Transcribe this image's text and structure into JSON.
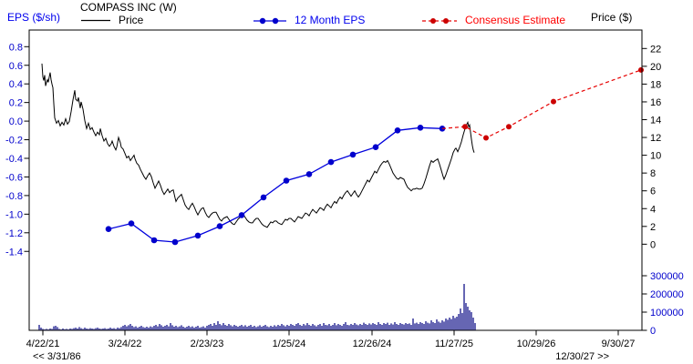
{
  "header": {
    "eps_axis_title": "EPS ($/sh)",
    "company_title": "COMPASS INC (W)",
    "price_axis_title": "Price ($)",
    "legend": {
      "price": "Price",
      "eps": "12 Month EPS",
      "consensus": "Consensus Estimate"
    }
  },
  "nav": {
    "left": "<< 3/31/86",
    "right": "12/30/27 >>"
  },
  "colors": {
    "price_black": "#000000",
    "eps_blue": "#0000dd",
    "consensus_red": "#e60000",
    "legend_red_text": "#ff0000",
    "axis_blue_text": "#0000cc",
    "volume_navy": "#000080"
  },
  "chart_data": {
    "type": "line",
    "title": "COMPASS INC (W)",
    "left_axis": {
      "label": "EPS ($/sh)",
      "ticks": [
        "0.8",
        "0.6",
        "0.4",
        "0.2",
        "0.0",
        "-0.2",
        "-0.4",
        "-0.6",
        "-0.8",
        "-1.0",
        "-1.2",
        "-1.4"
      ],
      "range": [
        0.8,
        -1.4
      ]
    },
    "right_axis": {
      "label": "Price ($)",
      "ticks": [
        "22",
        "20",
        "18",
        "16",
        "14",
        "12",
        "10",
        "8",
        "6",
        "4",
        "2",
        "0"
      ],
      "range": [
        22,
        0
      ]
    },
    "volume_axis": {
      "ticks": [
        "300000",
        "200000",
        "100000",
        "0"
      ],
      "range": [
        300000,
        0
      ]
    },
    "x_axis": {
      "ticks": [
        {
          "label": "4/22/21",
          "x": 47
        },
        {
          "label": "3/24/22",
          "x": 137
        },
        {
          "label": "2/23/23",
          "x": 227
        },
        {
          "label": "1/25/24",
          "x": 317
        },
        {
          "label": "12/26/24",
          "x": 408
        },
        {
          "label": "11/27/25",
          "x": 498
        },
        {
          "label": "10/29/26",
          "x": 588
        },
        {
          "label": "9/30/27",
          "x": 678
        }
      ]
    },
    "series": {
      "price_xy": [
        [
          46,
          20.3
        ],
        [
          47,
          18.8
        ],
        [
          48,
          18.4
        ],
        [
          49,
          19.0
        ],
        [
          50,
          17.8
        ],
        [
          51,
          18.2
        ],
        [
          52,
          18.5
        ],
        [
          53,
          18.2
        ],
        [
          54,
          18.8
        ],
        [
          55,
          19.3
        ],
        [
          56,
          18.5
        ],
        [
          57,
          18.0
        ],
        [
          58,
          17.6
        ],
        [
          59,
          15.8
        ],
        [
          60,
          14.2
        ],
        [
          62,
          13.6
        ],
        [
          64,
          13.9
        ],
        [
          66,
          13.3
        ],
        [
          68,
          13.7
        ],
        [
          70,
          13.4
        ],
        [
          72,
          14.1
        ],
        [
          74,
          13.5
        ],
        [
          76,
          13.8
        ],
        [
          78,
          14.9
        ],
        [
          80,
          16.2
        ],
        [
          82,
          17.3
        ],
        [
          83,
          16.3
        ],
        [
          85,
          16.1
        ],
        [
          86,
          16.5
        ],
        [
          88,
          15.3
        ],
        [
          89,
          16.0
        ],
        [
          91,
          15.2
        ],
        [
          93,
          13.9
        ],
        [
          95,
          13.0
        ],
        [
          97,
          13.6
        ],
        [
          99,
          12.9
        ],
        [
          101,
          13.1
        ],
        [
          103,
          12.6
        ],
        [
          105,
          12.2
        ],
        [
          107,
          12.6
        ],
        [
          109,
          12.3
        ],
        [
          110,
          13.0
        ],
        [
          112,
          12.2
        ],
        [
          114,
          11.6
        ],
        [
          116,
          11.9
        ],
        [
          118,
          11.3
        ],
        [
          120,
          11.0
        ],
        [
          122,
          11.3
        ],
        [
          123,
          11.6
        ],
        [
          125,
          11.0
        ],
        [
          127,
          10.6
        ],
        [
          128,
          10.9
        ],
        [
          130,
          12.0
        ],
        [
          132,
          11.4
        ],
        [
          133,
          10.9
        ],
        [
          135,
          10.7
        ],
        [
          137,
          10.2
        ],
        [
          139,
          9.7
        ],
        [
          141,
          9.9
        ],
        [
          143,
          9.4
        ],
        [
          145,
          9.7
        ],
        [
          147,
          10.0
        ],
        [
          148,
          9.6
        ],
        [
          150,
          9.1
        ],
        [
          152,
          8.9
        ],
        [
          154,
          8.4
        ],
        [
          156,
          8.0
        ],
        [
          158,
          7.6
        ],
        [
          160,
          7.3
        ],
        [
          162,
          7.7
        ],
        [
          164,
          8.0
        ],
        [
          166,
          7.6
        ],
        [
          168,
          6.9
        ],
        [
          170,
          6.3
        ],
        [
          172,
          6.7
        ],
        [
          174,
          7.1
        ],
        [
          176,
          6.6
        ],
        [
          178,
          6.0
        ],
        [
          180,
          5.6
        ],
        [
          182,
          5.9
        ],
        [
          184,
          6.2
        ],
        [
          186,
          5.8
        ],
        [
          188,
          6.0
        ],
        [
          190,
          6.1
        ],
        [
          192,
          5.2
        ],
        [
          193,
          4.8
        ],
        [
          195,
          5.2
        ],
        [
          197,
          5.4
        ],
        [
          199,
          5.6
        ],
        [
          201,
          5.0
        ],
        [
          203,
          4.4
        ],
        [
          205,
          4.1
        ],
        [
          207,
          3.9
        ],
        [
          209,
          4.3
        ],
        [
          211,
          4.6
        ],
        [
          213,
          4.2
        ],
        [
          215,
          3.7
        ],
        [
          217,
          3.3
        ],
        [
          219,
          3.7
        ],
        [
          221,
          4.0
        ],
        [
          223,
          4.1
        ],
        [
          225,
          3.6
        ],
        [
          227,
          3.2
        ],
        [
          229,
          3.0
        ],
        [
          231,
          3.3
        ],
        [
          233,
          3.5
        ],
        [
          235,
          3.6
        ],
        [
          237,
          3.6
        ],
        [
          239,
          3.2
        ],
        [
          241,
          2.8
        ],
        [
          243,
          2.6
        ],
        [
          245,
          2.9
        ],
        [
          247,
          3.0
        ],
        [
          249,
          3.1
        ],
        [
          251,
          2.8
        ],
        [
          253,
          2.5
        ],
        [
          255,
          2.3
        ],
        [
          257,
          2.2
        ],
        [
          259,
          2.5
        ],
        [
          261,
          2.8
        ],
        [
          263,
          3.0
        ],
        [
          265,
          3.2
        ],
        [
          267,
          3.3
        ],
        [
          269,
          3.0
        ],
        [
          271,
          2.7
        ],
        [
          273,
          2.5
        ],
        [
          275,
          2.4
        ],
        [
          277,
          2.4
        ],
        [
          279,
          2.7
        ],
        [
          281,
          2.9
        ],
        [
          283,
          2.9
        ],
        [
          285,
          2.6
        ],
        [
          287,
          2.3
        ],
        [
          289,
          2.1
        ],
        [
          291,
          2.0
        ],
        [
          293,
          1.9
        ],
        [
          295,
          2.2
        ],
        [
          297,
          2.5
        ],
        [
          299,
          2.4
        ],
        [
          301,
          2.6
        ],
        [
          303,
          2.6
        ],
        [
          305,
          2.4
        ],
        [
          307,
          2.3
        ],
        [
          309,
          2.2
        ],
        [
          311,
          2.5
        ],
        [
          313,
          2.8
        ],
        [
          315,
          2.7
        ],
        [
          317,
          2.9
        ],
        [
          319,
          2.9
        ],
        [
          321,
          2.7
        ],
        [
          323,
          2.5
        ],
        [
          325,
          2.8
        ],
        [
          327,
          3.1
        ],
        [
          329,
          3.0
        ],
        [
          331,
          2.9
        ],
        [
          333,
          3.2
        ],
        [
          335,
          3.5
        ],
        [
          337,
          3.4
        ],
        [
          339,
          3.2
        ],
        [
          341,
          3.6
        ],
        [
          343,
          3.9
        ],
        [
          345,
          3.7
        ],
        [
          347,
          3.5
        ],
        [
          349,
          3.8
        ],
        [
          351,
          4.1
        ],
        [
          353,
          4.0
        ],
        [
          355,
          3.8
        ],
        [
          357,
          4.2
        ],
        [
          359,
          4.5
        ],
        [
          361,
          4.3
        ],
        [
          363,
          4.1
        ],
        [
          365,
          4.5
        ],
        [
          367,
          4.8
        ],
        [
          369,
          4.6
        ],
        [
          371,
          5.0
        ],
        [
          373,
          5.3
        ],
        [
          375,
          5.1
        ],
        [
          377,
          5.5
        ],
        [
          379,
          5.8
        ],
        [
          381,
          6.0
        ],
        [
          383,
          5.7
        ],
        [
          385,
          5.4
        ],
        [
          387,
          5.7
        ],
        [
          389,
          6.0
        ],
        [
          391,
          5.6
        ],
        [
          393,
          5.3
        ],
        [
          395,
          5.6
        ],
        [
          397,
          6.0
        ],
        [
          399,
          6.4
        ],
        [
          401,
          6.8
        ],
        [
          403,
          7.2
        ],
        [
          405,
          7.0
        ],
        [
          407,
          7.4
        ],
        [
          409,
          7.8
        ],
        [
          411,
          8.2
        ],
        [
          413,
          8.0
        ],
        [
          415,
          8.4
        ],
        [
          417,
          8.8
        ],
        [
          419,
          9.1
        ],
        [
          421,
          9.3
        ],
        [
          423,
          9.2
        ],
        [
          425,
          9.4
        ],
        [
          427,
          9.0
        ],
        [
          429,
          8.5
        ],
        [
          431,
          8.0
        ],
        [
          433,
          7.7
        ],
        [
          435,
          7.4
        ],
        [
          437,
          7.3
        ],
        [
          439,
          7.5
        ],
        [
          441,
          7.4
        ],
        [
          443,
          7.3
        ],
        [
          445,
          6.8
        ],
        [
          447,
          6.4
        ],
        [
          449,
          6.2
        ],
        [
          451,
          6.0
        ],
        [
          453,
          6.2
        ],
        [
          455,
          6.2
        ],
        [
          457,
          6.3
        ],
        [
          459,
          6.2
        ],
        [
          461,
          6.2
        ],
        [
          463,
          6.3
        ],
        [
          465,
          6.8
        ],
        [
          467,
          7.4
        ],
        [
          469,
          8.1
        ],
        [
          471,
          8.8
        ],
        [
          473,
          9.4
        ],
        [
          475,
          9.2
        ],
        [
          477,
          9.4
        ],
        [
          479,
          9.5
        ],
        [
          480,
          9.6
        ],
        [
          482,
          9.0
        ],
        [
          484,
          8.3
        ],
        [
          486,
          7.6
        ],
        [
          487,
          7.3
        ],
        [
          489,
          7.8
        ],
        [
          491,
          8.4
        ],
        [
          493,
          9.0
        ],
        [
          495,
          9.6
        ],
        [
          497,
          10.3
        ],
        [
          499,
          10.7
        ],
        [
          500,
          10.8
        ],
        [
          502,
          10.4
        ],
        [
          504,
          10.9
        ],
        [
          506,
          11.5
        ],
        [
          508,
          12.3
        ],
        [
          510,
          13.0
        ],
        [
          512,
          13.5
        ],
        [
          513,
          13.7
        ],
        [
          514,
          13.2
        ],
        [
          515,
          13.4
        ],
        [
          516,
          12.6
        ],
        [
          517,
          11.8
        ],
        [
          518,
          11.1
        ],
        [
          519,
          10.6
        ],
        [
          520,
          10.3
        ]
      ],
      "eps_points": [
        [
          119,
          -1.16
        ],
        [
          144,
          -1.1
        ],
        [
          169,
          -1.28
        ],
        [
          192,
          -1.3
        ],
        [
          217,
          -1.23
        ],
        [
          241,
          -1.13
        ],
        [
          265,
          -1.01
        ],
        [
          289,
          -0.82
        ],
        [
          314,
          -0.64
        ],
        [
          339,
          -0.57
        ],
        [
          363,
          -0.44
        ],
        [
          387,
          -0.36
        ],
        [
          412,
          -0.28
        ],
        [
          436,
          -0.1
        ],
        [
          461,
          -0.07
        ],
        [
          485,
          -0.08
        ]
      ],
      "consensus_connect_from": [
        485,
        -0.08
      ],
      "consensus_points": [
        [
          510,
          -0.06
        ],
        [
          533,
          -0.18
        ],
        [
          558,
          -0.06
        ],
        [
          607,
          0.21
        ],
        [
          703,
          0.55
        ]
      ],
      "volume_x0": 43,
      "volume_pitch": 2,
      "volume_k": [
        30,
        15,
        8,
        5,
        8,
        5,
        10,
        8,
        22,
        25,
        18,
        8,
        5,
        10,
        6,
        8,
        5,
        10,
        8,
        12,
        15,
        10,
        18,
        12,
        8,
        15,
        10,
        8,
        12,
        10,
        8,
        12,
        15,
        10,
        8,
        10,
        12,
        8,
        10,
        15,
        10,
        12,
        8,
        15,
        12,
        18,
        25,
        30,
        22,
        28,
        35,
        25,
        18,
        22,
        15,
        20,
        25,
        18,
        15,
        20,
        15,
        22,
        18,
        25,
        30,
        22,
        35,
        28,
        20,
        25,
        30,
        22,
        40,
        28,
        20,
        25,
        18,
        22,
        28,
        20,
        15,
        20,
        25,
        18,
        22,
        15,
        20,
        25,
        15,
        18,
        22,
        15,
        25,
        30,
        35,
        25,
        40,
        30,
        50,
        35,
        28,
        40,
        30,
        25,
        35,
        28,
        22,
        30,
        25,
        20,
        25,
        30,
        22,
        28,
        20,
        25,
        30,
        20,
        25,
        18,
        22,
        28,
        20,
        25,
        30,
        22,
        18,
        25,
        20,
        28,
        22,
        30,
        25,
        35,
        28,
        22,
        30,
        25,
        35,
        30,
        25,
        35,
        40,
        30,
        25,
        35,
        28,
        40,
        30,
        25,
        35,
        28,
        22,
        30,
        35,
        25,
        40,
        30,
        28,
        35,
        25,
        30,
        40,
        28,
        35,
        30,
        25,
        35,
        45,
        30,
        28,
        35,
        30,
        40,
        32,
        28,
        35,
        30,
        42,
        35,
        30,
        38,
        32,
        40,
        35,
        30,
        45,
        35,
        30,
        40,
        35,
        42,
        30,
        38,
        32,
        45,
        35,
        30,
        40,
        35,
        32,
        40,
        35,
        38,
        30,
        65,
        38,
        42,
        35,
        45,
        40,
        35,
        50,
        42,
        38,
        55,
        45,
        40,
        60,
        48,
        42,
        55,
        48,
        65,
        58,
        70,
        62,
        80,
        68,
        75,
        90,
        120,
        95,
        255,
        150,
        130,
        110,
        100,
        70,
        40
      ]
    }
  }
}
